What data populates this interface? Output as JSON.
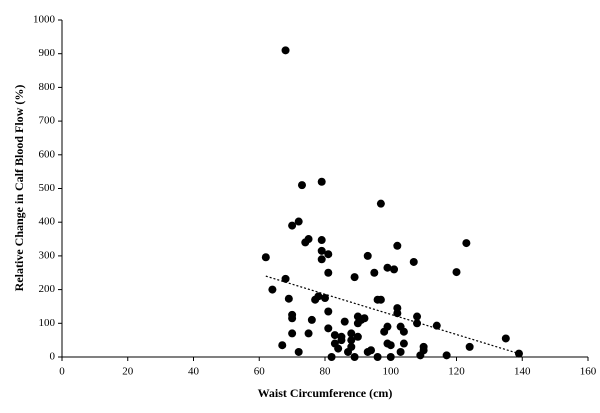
{
  "chart_data": {
    "type": "scatter",
    "x_label": "Waist Circumference (cm)",
    "y_label": "Relative Change in Calf Blood Flow (%)",
    "xlim": [
      0,
      160
    ],
    "xticks": [
      0,
      20,
      40,
      60,
      80,
      100,
      120,
      140,
      160
    ],
    "ylim": [
      0,
      1000
    ],
    "yticks": [
      0,
      100,
      200,
      300,
      400,
      500,
      600,
      700,
      800,
      900,
      1000
    ],
    "series": [
      {
        "color": "#000000",
        "x": [
          68,
          62,
          64,
          67,
          68,
          69,
          70,
          70,
          70,
          70,
          72,
          72,
          73,
          74,
          75,
          75,
          76,
          77,
          78,
          79,
          79,
          79,
          79,
          80,
          81,
          81,
          81,
          81,
          82,
          83,
          83,
          84,
          85,
          85,
          86,
          87,
          88,
          88,
          88,
          89,
          89,
          90,
          90,
          90,
          91,
          92,
          93,
          93,
          94,
          95,
          96,
          96,
          97,
          97,
          98,
          99,
          99,
          99,
          100,
          100,
          101,
          102,
          102,
          102,
          103,
          103,
          104,
          104,
          107,
          108,
          108,
          109,
          110,
          110,
          114,
          117,
          120,
          123,
          124,
          135,
          139
        ],
        "values": [
          910,
          296,
          200,
          35,
          232,
          173,
          390,
          115,
          125,
          70,
          402,
          15,
          510,
          340,
          350,
          70,
          110,
          170,
          180,
          520,
          347,
          290,
          315,
          175,
          305,
          250,
          135,
          85,
          0,
          65,
          40,
          25,
          60,
          50,
          105,
          15,
          30,
          50,
          70,
          237,
          0,
          120,
          100,
          60,
          110,
          115,
          300,
          15,
          20,
          250,
          170,
          0,
          455,
          170,
          75,
          265,
          90,
          40,
          0,
          35,
          260,
          145,
          130,
          330,
          90,
          15,
          75,
          40,
          282,
          120,
          100,
          5,
          30,
          20,
          93,
          5,
          252,
          338,
          30,
          55,
          10
        ]
      }
    ],
    "trendline": {
      "color": "#000000",
      "x": [
        62,
        139
      ],
      "values": [
        240,
        10
      ]
    }
  }
}
